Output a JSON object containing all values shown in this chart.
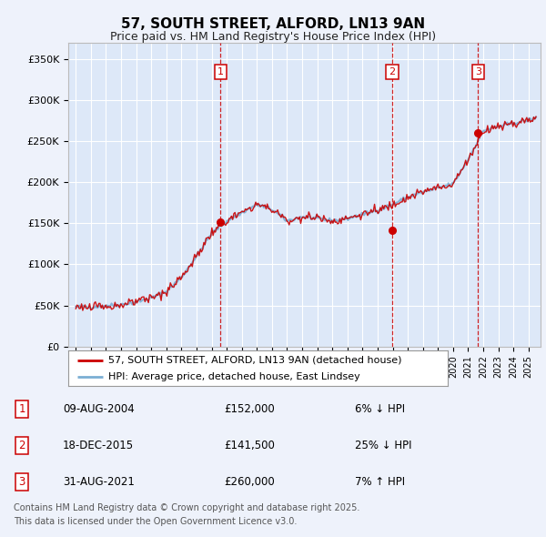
{
  "title": "57, SOUTH STREET, ALFORD, LN13 9AN",
  "subtitle": "Price paid vs. HM Land Registry's House Price Index (HPI)",
  "ylabel_ticks": [
    "£0",
    "£50K",
    "£100K",
    "£150K",
    "£200K",
    "£250K",
    "£300K",
    "£350K"
  ],
  "ytick_values": [
    0,
    50000,
    100000,
    150000,
    200000,
    250000,
    300000,
    350000
  ],
  "ylim": [
    0,
    370000
  ],
  "xlim_start": 1994.5,
  "xlim_end": 2025.8,
  "transaction1": {
    "date": "09-AUG-2004",
    "x": 2004.6,
    "price": 152000,
    "pct": "6%",
    "dir": "↓",
    "label": "1"
  },
  "transaction2": {
    "date": "18-DEC-2015",
    "x": 2015.96,
    "price": 141500,
    "pct": "25%",
    "dir": "↓",
    "label": "2"
  },
  "transaction3": {
    "date": "31-AUG-2021",
    "x": 2021.66,
    "price": 260000,
    "pct": "7%",
    "dir": "↑",
    "label": "3"
  },
  "legend_red_label": "57, SOUTH STREET, ALFORD, LN13 9AN (detached house)",
  "legend_blue_label": "HPI: Average price, detached house, East Lindsey",
  "footer_line1": "Contains HM Land Registry data © Crown copyright and database right 2025.",
  "footer_line2": "This data is licensed under the Open Government Licence v3.0.",
  "bg_color": "#eef2fb",
  "plot_bg_color": "#dde8f8",
  "red_color": "#cc0000",
  "blue_color": "#7bafd4",
  "grid_color": "#ffffff",
  "dashed_color": "#cc0000",
  "title_fontsize": 11,
  "subtitle_fontsize": 9,
  "tick_fontsize": 8,
  "legend_fontsize": 8,
  "table_fontsize": 8.5,
  "footer_fontsize": 7
}
